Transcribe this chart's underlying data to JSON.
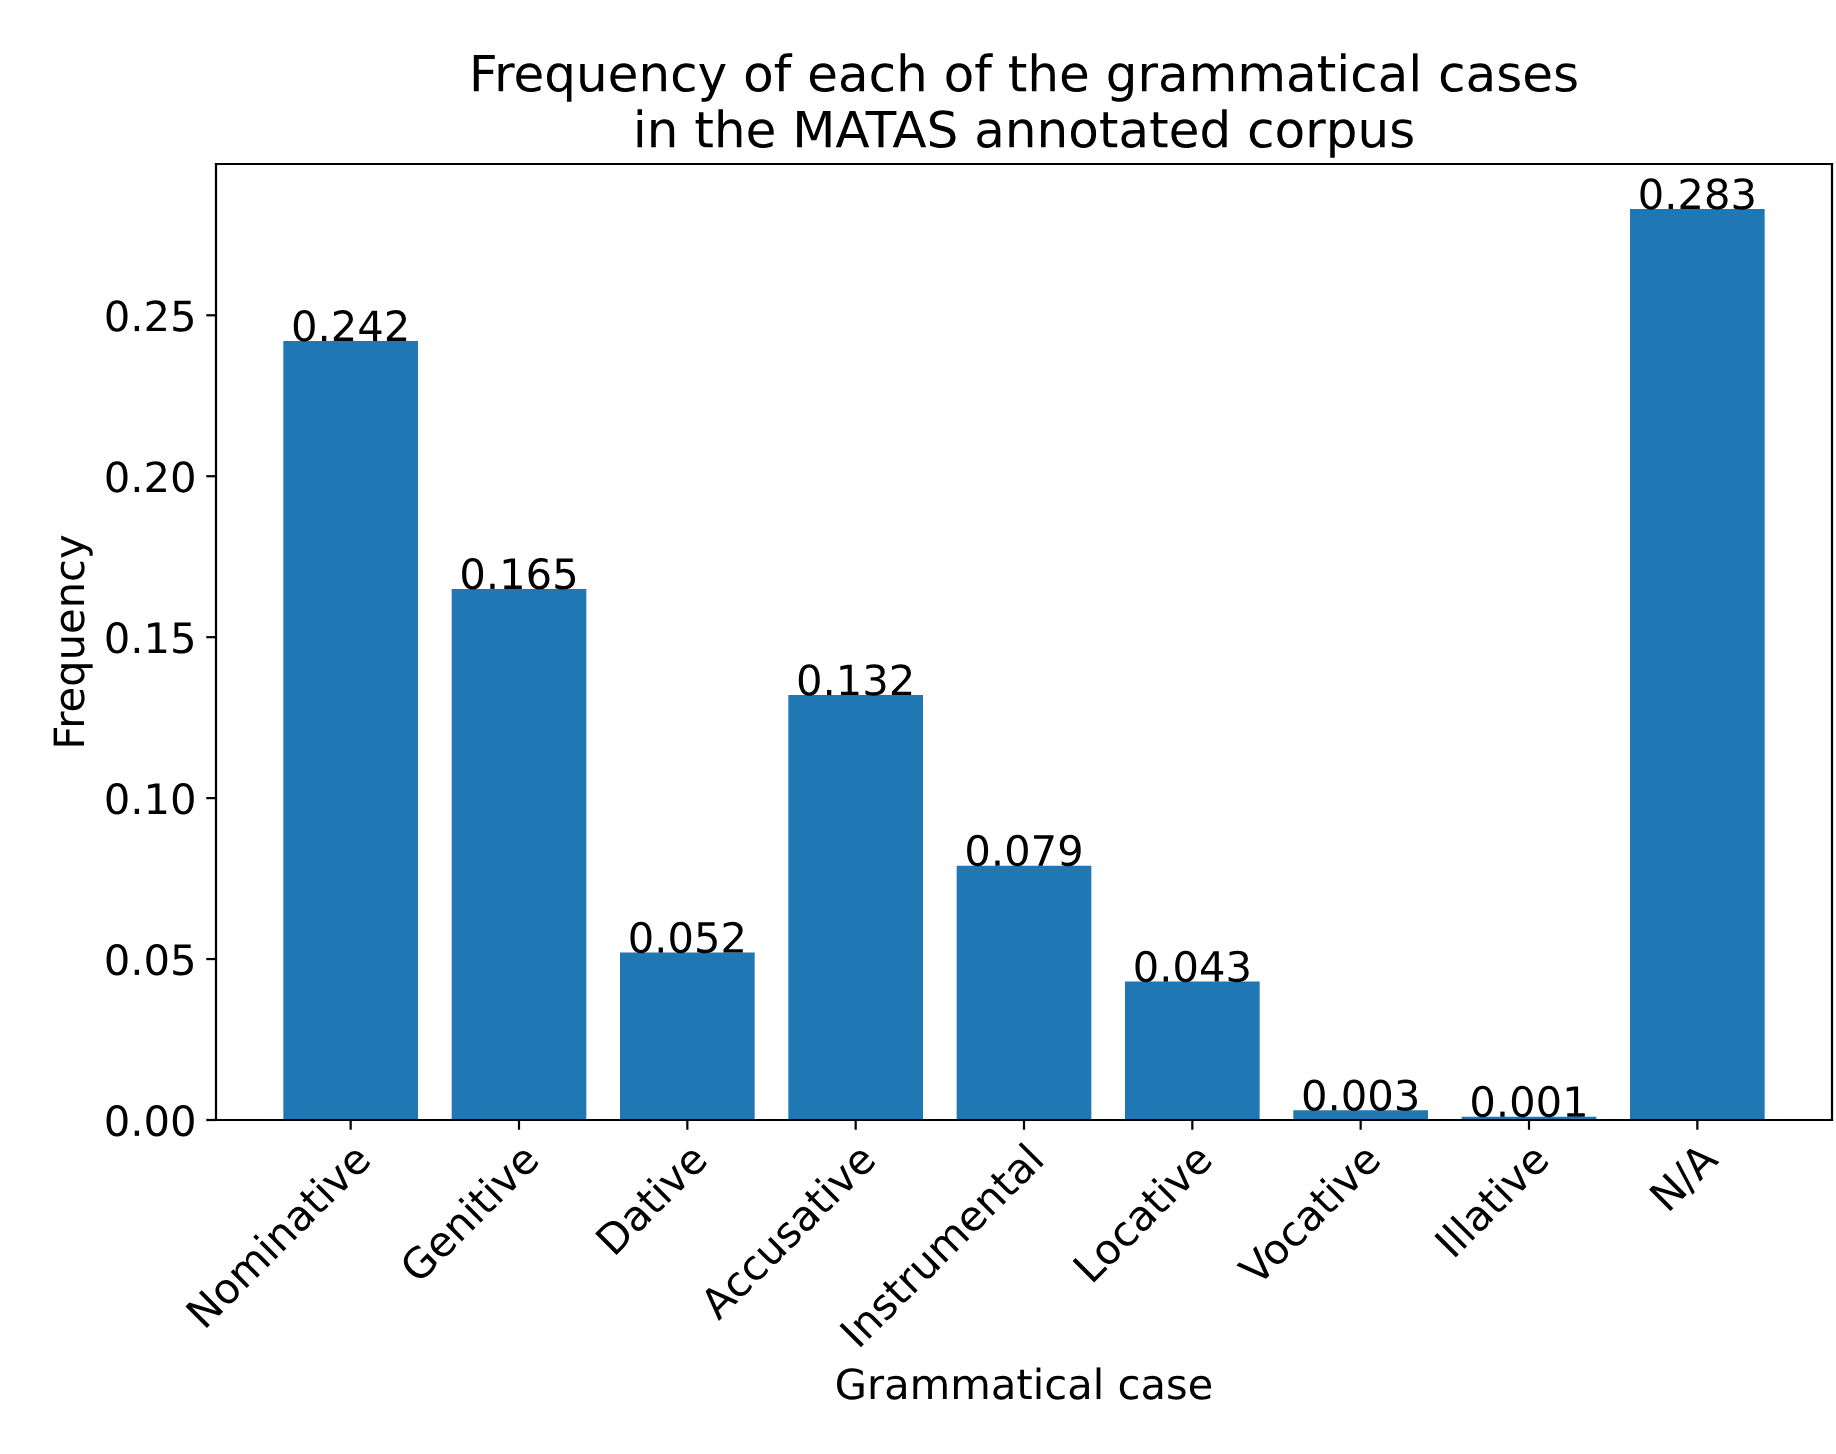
{
  "chart_data": {
    "type": "bar",
    "title": "Frequency of each of the grammatical cases\nin the MATAS annotated corpus",
    "xlabel": "Grammatical case",
    "ylabel": "Frequency",
    "categories": [
      "Nominative",
      "Genitive",
      "Dative",
      "Accusative",
      "Instrumental",
      "Locative",
      "Vocative",
      "Illative",
      "N/A"
    ],
    "values": [
      0.242,
      0.165,
      0.052,
      0.132,
      0.079,
      0.043,
      0.003,
      0.001,
      0.283
    ],
    "color": "#1f77b4",
    "data_labels": true,
    "ylim": [
      0,
      0.297
    ],
    "yticks": [
      {
        "value": 0,
        "label": "0.00"
      },
      {
        "value": 0.05,
        "label": "0.05"
      },
      {
        "value": 0.1,
        "label": "0.10"
      },
      {
        "value": 0.15,
        "label": "0.15"
      },
      {
        "value": 0.2,
        "label": "0.20"
      },
      {
        "value": 0.25,
        "label": "0.25"
      }
    ],
    "grid": false,
    "legend": false
  }
}
